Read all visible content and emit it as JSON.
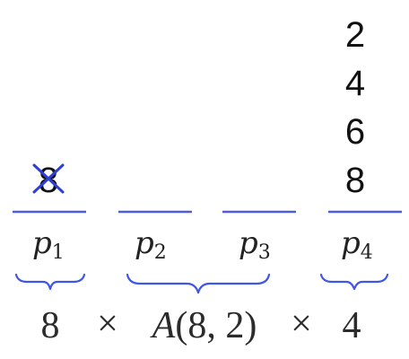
{
  "slots": [
    {
      "label": "p",
      "subscript": "1",
      "values": [
        "8"
      ],
      "crossed_out": true
    },
    {
      "label": "p",
      "subscript": "2",
      "values": []
    },
    {
      "label": "p",
      "subscript": "3",
      "values": []
    },
    {
      "label": "p",
      "subscript": "4",
      "values": [
        "2",
        "4",
        "6",
        "8"
      ]
    }
  ],
  "braces": [
    {
      "covers_slots": [
        "p1"
      ],
      "factor": "8"
    },
    {
      "covers_slots": [
        "p2",
        "p3"
      ],
      "factor": "A(8, 2)"
    },
    {
      "covers_slots": [
        "p4"
      ],
      "factor": "4"
    }
  ],
  "formula": {
    "term1": "8",
    "times1": "×",
    "term2_func": "A",
    "term2_args": "(8, 2)",
    "times2": "×",
    "term3": "4"
  },
  "colors": {
    "accent": "#4f5be0",
    "cross": "#2f3fd4",
    "text": "#111111"
  }
}
